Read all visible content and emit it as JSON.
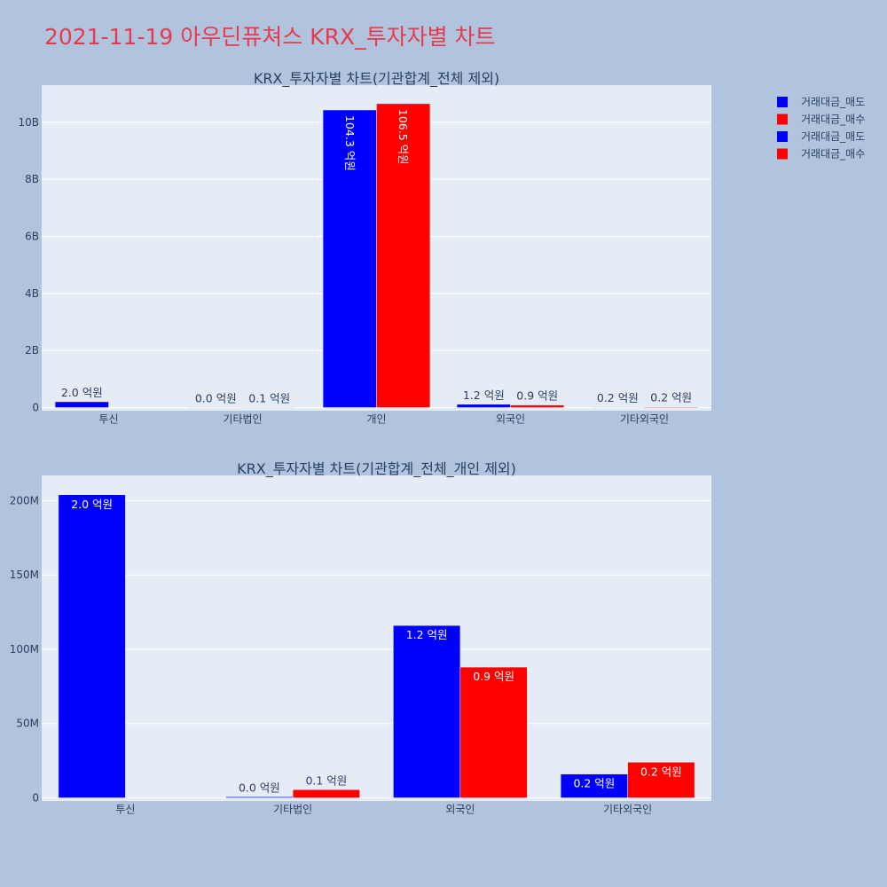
{
  "page_title": "2021-11-19 아우딘퓨쳐스 KRX_투자자별 차트",
  "colors": {
    "sell": "#0000ff",
    "buy": "#ff0000",
    "plot_bg": "#e5ecf6",
    "page_bg": "#b0c4de",
    "title": "#e8394f"
  },
  "legend": {
    "position": "top-right",
    "entries": [
      {
        "name": "거래대금_매도",
        "color": "#0000ff"
      },
      {
        "name": "거래대금_매수",
        "color": "#ff0000"
      },
      {
        "name": "거래대금_매도",
        "color": "#0000ff"
      },
      {
        "name": "거래대금_매수",
        "color": "#ff0000"
      }
    ]
  },
  "chart_data": [
    {
      "type": "bar",
      "title": "KRX_투자자별 차트(기관합계_전체 제외)",
      "categories": [
        "투신",
        "기타법인",
        "개인",
        "외국인",
        "기타외국인"
      ],
      "ylim": [
        0,
        11300000000
      ],
      "yticks": [
        0,
        2000000000,
        4000000000,
        6000000000,
        8000000000,
        10000000000
      ],
      "ytick_labels": [
        "0",
        "2B",
        "4B",
        "6B",
        "8B",
        "10B"
      ],
      "grid": true,
      "series": [
        {
          "name": "거래대금_매도",
          "color": "#0000ff",
          "values": [
            204000000,
            700000,
            10430000000,
            116000000,
            16000000
          ],
          "labels": [
            "2.0 억원",
            "0.0 억원",
            "104.3 억원",
            "1.2 억원",
            "0.2 억원"
          ]
        },
        {
          "name": "거래대금_매수",
          "color": "#ff0000",
          "values": [
            0,
            5500000,
            10650000000,
            88000000,
            24000000
          ],
          "labels": [
            "",
            "0.1 억원",
            "106.5 억원",
            "0.9 억원",
            "0.2 억원"
          ]
        }
      ]
    },
    {
      "type": "bar",
      "title": "KRX_투자자별 차트(기관합계_전체_개인 제외)",
      "categories": [
        "투신",
        "기타법인",
        "외국인",
        "기타외국인"
      ],
      "ylim": [
        0,
        217000000
      ],
      "yticks": [
        0,
        50000000,
        100000000,
        150000000,
        200000000
      ],
      "ytick_labels": [
        "0",
        "50M",
        "100M",
        "150M",
        "200M"
      ],
      "grid": true,
      "series": [
        {
          "name": "거래대금_매도",
          "color": "#0000ff",
          "values": [
            204000000,
            700000,
            116000000,
            16000000
          ],
          "labels": [
            "2.0 억원",
            "0.0 억원",
            "1.2 억원",
            "0.2 억원"
          ]
        },
        {
          "name": "거래대금_매수",
          "color": "#ff0000",
          "values": [
            0,
            5500000,
            88000000,
            24000000
          ],
          "labels": [
            "",
            "0.1 억원",
            "0.9 억원",
            "0.2 억원"
          ]
        }
      ]
    }
  ]
}
